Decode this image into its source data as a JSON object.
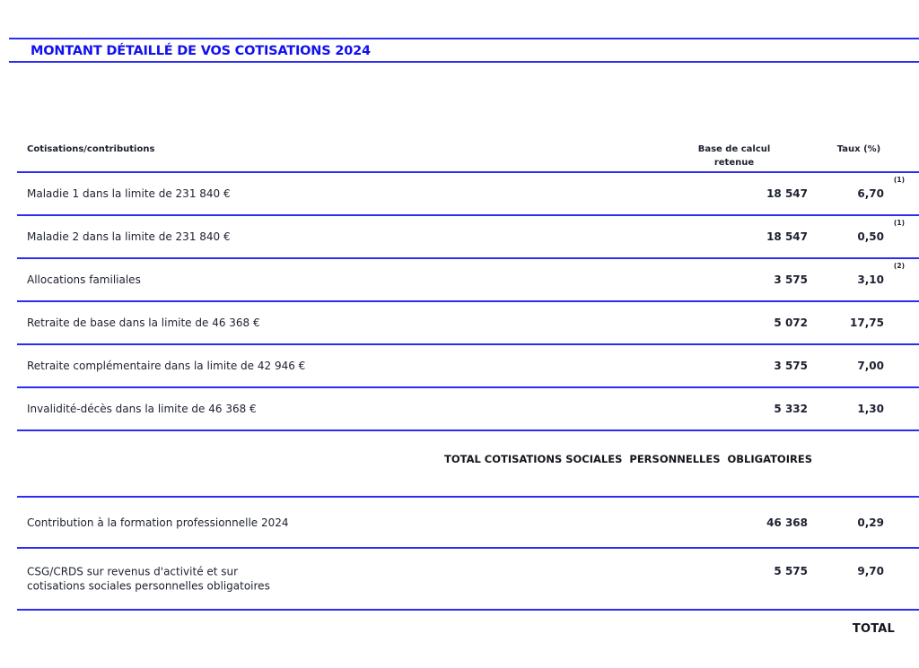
{
  "title": "MONTANT DÉTAILLÉ DE VOS COTISATIONS 2024",
  "table": {
    "col_headers": {
      "cotisations": "Cotisations/contributions",
      "base_l1": "Base de calcul",
      "base_l2": "retenue",
      "taux": "Taux (%)"
    },
    "rows": [
      {
        "label": "Maladie 1 dans la limite de 231 840 €",
        "base": "18 547",
        "taux": "6,70",
        "note": "(1)"
      },
      {
        "label": "Maladie 2 dans la limite de 231 840 €",
        "base": "18 547",
        "taux": "0,50",
        "note": "(1)"
      },
      {
        "label": "Allocations familiales",
        "base": "3 575",
        "taux": "3,10",
        "note": "(2)"
      },
      {
        "label": "Retraite de base dans la limite de 46 368 €",
        "base": "5 072",
        "taux": "17,75",
        "note": ""
      },
      {
        "label": "Retraite complémentaire dans la limite de 42 946 €",
        "base": "3 575",
        "taux": "7,00",
        "note": ""
      },
      {
        "label": "Invalidité-décès dans la limite de 46 368 €",
        "base": "5 332",
        "taux": "1,30",
        "note": ""
      }
    ],
    "subtotal": "TOTAL COTISATIONS SOCIALES  PERSONNELLES  OBLIGATOIRES",
    "rows2": [
      {
        "label": "Contribution à la formation professionnelle 2024",
        "base": "46 368",
        "taux": "0,29",
        "note": ""
      },
      {
        "label": "CSG/CRDS sur revenus d'activité et sur\ncotisations sociales personnelles obligatoires",
        "base": "5 575",
        "taux": "9,70",
        "note": ""
      }
    ],
    "grand_total_label": "TOTAL"
  },
  "colors": {
    "accent_blue": "#2d2df0",
    "title_blue": "#1310f0",
    "text_dark": "#1d2130",
    "total_black": "#14161c"
  }
}
